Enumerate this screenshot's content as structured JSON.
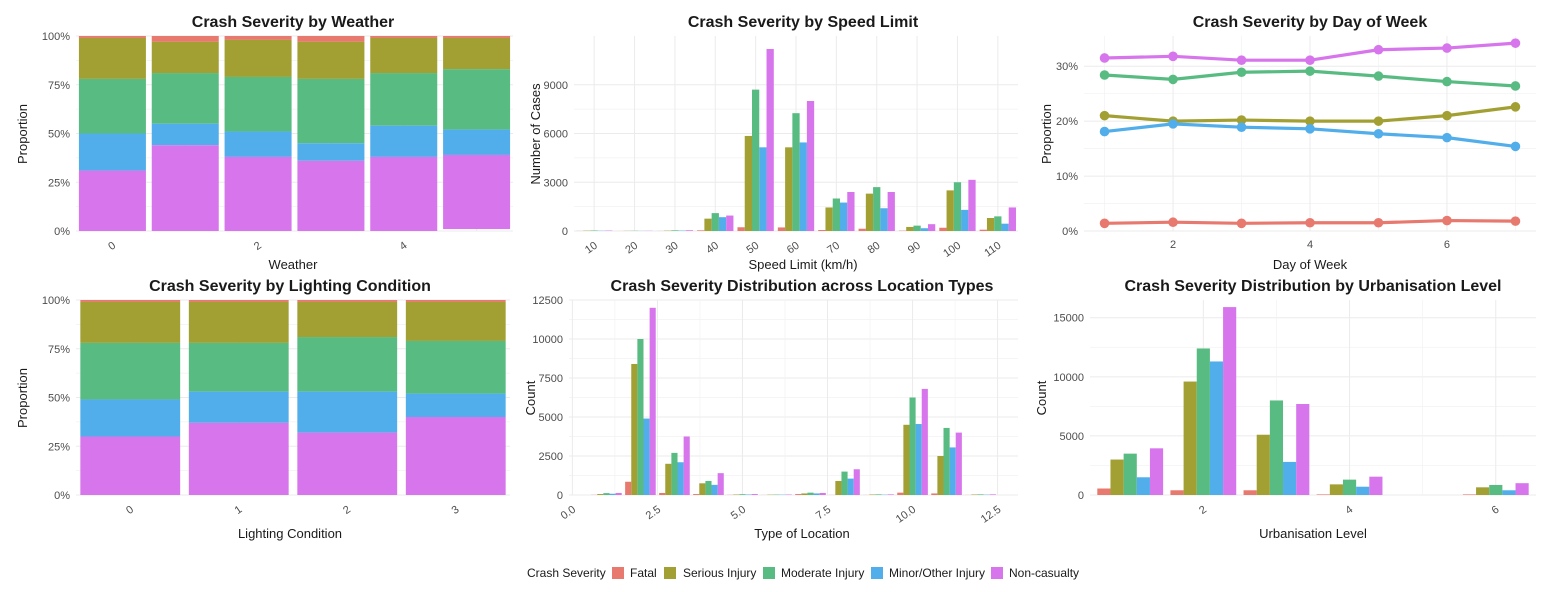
{
  "legend": {
    "title": "Crash Severity",
    "items": [
      {
        "label": "Fatal",
        "color": "#E7796F"
      },
      {
        "label": "Serious Injury",
        "color": "#A3A033"
      },
      {
        "label": "Moderate Injury",
        "color": "#58BB81"
      },
      {
        "label": "Minor/Other Injury",
        "color": "#51AEEA"
      },
      {
        "label": "Non-casualty",
        "color": "#D775EC"
      }
    ]
  },
  "chart_data": [
    {
      "id": "weather",
      "type": "bar",
      "stacked": true,
      "title": "Crash Severity by Weather",
      "xlabel": "Weather",
      "ylabel": "Proportion",
      "x": [
        0,
        1,
        2,
        3,
        4,
        5
      ],
      "xticks": [
        0,
        2,
        4
      ],
      "xlim": [
        -0.5,
        5.5
      ],
      "ylim": [
        0,
        1
      ],
      "yticks": [
        0,
        0.25,
        0.5,
        0.75,
        1
      ],
      "ytick_labels": [
        "0%",
        "25%",
        "50%",
        "75%",
        "100%"
      ],
      "series": [
        {
          "name": "Fatal",
          "values": [
            0.01,
            0.03,
            0.02,
            0.03,
            0.01,
            0.01
          ]
        },
        {
          "name": "Serious Injury",
          "values": [
            0.21,
            0.16,
            0.19,
            0.19,
            0.18,
            0.16
          ]
        },
        {
          "name": "Moderate Injury",
          "values": [
            0.28,
            0.26,
            0.28,
            0.33,
            0.27,
            0.31
          ]
        },
        {
          "name": "Minor/Other Injury",
          "values": [
            0.19,
            0.11,
            0.13,
            0.09,
            0.16,
            0.13
          ]
        },
        {
          "name": "Non-casualty",
          "values": [
            0.31,
            0.44,
            0.38,
            0.36,
            0.38,
            0.38
          ]
        }
      ]
    },
    {
      "id": "speed",
      "type": "bar",
      "stacked": false,
      "title": "Crash Severity by Speed Limit",
      "xlabel": "Speed Limit (km/h)",
      "ylabel": "Number of Cases",
      "categories": [
        "10",
        "20",
        "30",
        "40",
        "50",
        "60",
        "70",
        "80",
        "90",
        "100",
        "110"
      ],
      "ylim": [
        0,
        12000
      ],
      "yticks": [
        0,
        3000,
        6000,
        9000
      ],
      "ytick_labels": [
        "0",
        "3000",
        "6000",
        "9000"
      ],
      "series": [
        {
          "name": "Fatal",
          "values": [
            5,
            2,
            5,
            40,
            230,
            220,
            60,
            140,
            20,
            200,
            80
          ]
        },
        {
          "name": "Serious Injury",
          "values": [
            20,
            10,
            20,
            760,
            5850,
            5150,
            1450,
            2300,
            250,
            2500,
            800
          ]
        },
        {
          "name": "Moderate Injury",
          "values": [
            30,
            15,
            40,
            1100,
            8700,
            7250,
            2000,
            2700,
            330,
            3000,
            900
          ]
        },
        {
          "name": "Minor/Other Injury",
          "values": [
            15,
            8,
            25,
            850,
            5150,
            5450,
            1750,
            1400,
            170,
            1300,
            450
          ]
        },
        {
          "name": "Non-casualty",
          "values": [
            25,
            12,
            45,
            950,
            11200,
            8000,
            2400,
            2400,
            420,
            3150,
            1450
          ]
        }
      ]
    },
    {
      "id": "day",
      "type": "line",
      "title": "Crash Severity by Day of Week",
      "xlabel": "Day of Week",
      "ylabel": "Proportion",
      "x": [
        1,
        2,
        3,
        4,
        5,
        6,
        7
      ],
      "xticks": [
        2,
        4,
        6
      ],
      "xlim": [
        0.7,
        7.3
      ],
      "ylim": [
        0,
        0.355
      ],
      "yticks": [
        0,
        0.1,
        0.2,
        0.3
      ],
      "ytick_labels": [
        "0%",
        "10%",
        "20%",
        "30%"
      ],
      "series": [
        {
          "name": "Fatal",
          "values": [
            0.014,
            0.016,
            0.014,
            0.015,
            0.015,
            0.019,
            0.018
          ]
        },
        {
          "name": "Serious Injury",
          "values": [
            0.21,
            0.2,
            0.202,
            0.2,
            0.2,
            0.21,
            0.226
          ]
        },
        {
          "name": "Moderate Injury",
          "values": [
            0.284,
            0.276,
            0.289,
            0.291,
            0.282,
            0.272,
            0.264
          ]
        },
        {
          "name": "Minor/Other Injury",
          "values": [
            0.181,
            0.195,
            0.189,
            0.186,
            0.177,
            0.17,
            0.154
          ]
        },
        {
          "name": "Non-casualty",
          "values": [
            0.315,
            0.318,
            0.311,
            0.311,
            0.33,
            0.333,
            0.342
          ]
        }
      ]
    },
    {
      "id": "lighting",
      "type": "bar",
      "stacked": true,
      "title": "Crash Severity by Lighting Condition",
      "xlabel": "Lighting Condition",
      "ylabel": "Proportion",
      "x": [
        0,
        1,
        2,
        3
      ],
      "xticks": [
        0,
        1,
        2,
        3
      ],
      "xlim": [
        -0.5,
        3.5
      ],
      "ylim": [
        0,
        1
      ],
      "yticks": [
        0,
        0.25,
        0.5,
        0.75,
        1
      ],
      "ytick_labels": [
        "0%",
        "25%",
        "50%",
        "75%",
        "100%"
      ],
      "series": [
        {
          "name": "Fatal",
          "values": [
            0.01,
            0.01,
            0.01,
            0.01
          ]
        },
        {
          "name": "Serious Injury",
          "values": [
            0.21,
            0.21,
            0.18,
            0.2
          ]
        },
        {
          "name": "Moderate Injury",
          "values": [
            0.29,
            0.25,
            0.28,
            0.27
          ]
        },
        {
          "name": "Minor/Other Injury",
          "values": [
            0.19,
            0.16,
            0.21,
            0.12
          ]
        },
        {
          "name": "Non-casualty",
          "values": [
            0.3,
            0.37,
            0.32,
            0.4
          ]
        }
      ]
    },
    {
      "id": "location",
      "type": "bar",
      "stacked": false,
      "title": "Crash Severity Distribution across Location Types",
      "xlabel": "Type of Location",
      "ylabel": "Count",
      "x": [
        1,
        2,
        3,
        4,
        5,
        6,
        7,
        8,
        9,
        10,
        11,
        12
      ],
      "xticks": [
        0,
        2.5,
        5,
        7.5,
        10,
        12.5
      ],
      "xtick_labels": [
        "0.0",
        "2.5",
        "5.0",
        "7.5",
        "10.0",
        "12.5"
      ],
      "xlim": [
        -0.1,
        13.1
      ],
      "ylim": [
        0,
        12500
      ],
      "yticks": [
        0,
        2500,
        5000,
        7500,
        10000,
        12500
      ],
      "ytick_labels": [
        "0",
        "2500",
        "5000",
        "7500",
        "10000",
        "12500"
      ],
      "series": [
        {
          "name": "Fatal",
          "values": [
            10,
            850,
            130,
            60,
            10,
            5,
            60,
            5,
            5,
            150,
            100,
            5
          ]
        },
        {
          "name": "Serious Injury",
          "values": [
            60,
            8400,
            2000,
            750,
            30,
            20,
            100,
            900,
            30,
            4500,
            2500,
            30
          ]
        },
        {
          "name": "Moderate Injury",
          "values": [
            120,
            10000,
            2700,
            900,
            50,
            25,
            150,
            1500,
            40,
            6250,
            4300,
            40
          ]
        },
        {
          "name": "Minor/Other Injury",
          "values": [
            80,
            4900,
            2100,
            650,
            30,
            20,
            100,
            1050,
            20,
            4550,
            3050,
            20
          ]
        },
        {
          "name": "Non-casualty",
          "values": [
            130,
            12000,
            3750,
            1400,
            60,
            30,
            130,
            1650,
            40,
            6800,
            4000,
            40
          ]
        }
      ]
    },
    {
      "id": "urban",
      "type": "bar",
      "stacked": false,
      "title": "Crash Severity Distribution by Urbanisation Level",
      "xlabel": "Urbanisation Level",
      "ylabel": "Count",
      "x": [
        1,
        2,
        3,
        4,
        5,
        6
      ],
      "xticks": [
        2,
        4,
        6
      ],
      "xlim": [
        0.45,
        6.55
      ],
      "ylim": [
        0,
        16500
      ],
      "yticks": [
        0,
        5000,
        10000,
        15000
      ],
      "ytick_labels": [
        "0",
        "5000",
        "10000",
        "15000"
      ],
      "series": [
        {
          "name": "Fatal",
          "values": [
            550,
            400,
            400,
            50,
            0,
            50
          ]
        },
        {
          "name": "Serious Injury",
          "values": [
            3000,
            9600,
            5100,
            900,
            0,
            650
          ]
        },
        {
          "name": "Moderate Injury",
          "values": [
            3500,
            12400,
            8000,
            1300,
            0,
            850
          ]
        },
        {
          "name": "Minor/Other Injury",
          "values": [
            1500,
            11300,
            2800,
            700,
            0,
            400
          ]
        },
        {
          "name": "Non-casualty",
          "values": [
            3950,
            15900,
            7700,
            1550,
            0,
            1000
          ]
        }
      ]
    }
  ]
}
